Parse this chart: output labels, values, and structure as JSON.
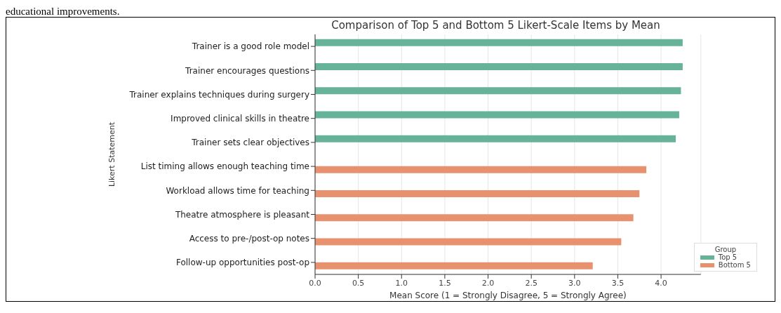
{
  "chart_data": {
    "type": "bar",
    "orientation": "horizontal",
    "title": "Comparison of Top 5 and Bottom 5 Likert-Scale Items by Mean",
    "xlabel": "Mean Score (1 = Strongly Disagree, 5 = Strongly Agree)",
    "ylabel": "Likert Statement",
    "legend_title": "Group",
    "annotations": [
      "educational improvements."
    ],
    "categories": [
      "Trainer is a good role model",
      "Trainer encourages questions",
      "Trainer explains techniques during surgery",
      "Improved clinical skills in theatre",
      "Trainer sets clear objectives",
      "List timing allows enough teaching time",
      "Workload allows time for teaching",
      "Theatre atmosphere is pleasant",
      "Access to pre-/post-op notes",
      "Follow-up opportunities post-op"
    ],
    "series": [
      {
        "name": "Top 5",
        "color": "#66b39a",
        "values": [
          4.25,
          4.25,
          4.23,
          4.21,
          4.17,
          null,
          null,
          null,
          null,
          null
        ]
      },
      {
        "name": "Bottom 5",
        "color": "#e8916e",
        "values": [
          null,
          null,
          null,
          null,
          null,
          3.83,
          3.75,
          3.68,
          3.54,
          3.21
        ]
      }
    ],
    "xlim": [
      0,
      4.46
    ],
    "xticks": [
      {
        "value": 0,
        "label": "0.0"
      },
      {
        "value": 0.5,
        "label": "0.5"
      },
      {
        "value": 1,
        "label": "1.0"
      },
      {
        "value": 1.5,
        "label": "1.5"
      },
      {
        "value": 2,
        "label": "2.0"
      },
      {
        "value": 2.5,
        "label": "2.5"
      },
      {
        "value": 3,
        "label": "3.0"
      },
      {
        "value": 3.5,
        "label": "3.5"
      },
      {
        "value": 4,
        "label": "4.0"
      }
    ],
    "grid": "x",
    "legend": "bottom right"
  }
}
